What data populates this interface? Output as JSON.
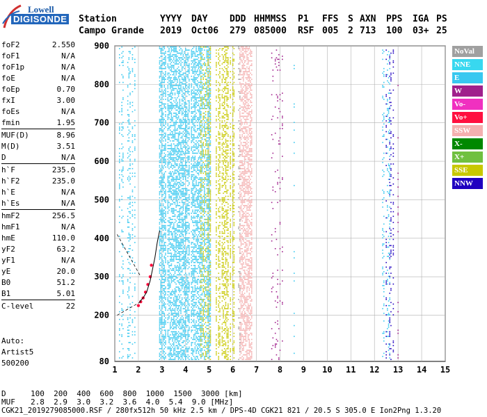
{
  "logo": {
    "top": "Lowell",
    "bottom": "DIGISONDE"
  },
  "header": {
    "labels": [
      "Station",
      "YYYY",
      "DAY",
      "DDD",
      "HHMMSS",
      "P1",
      "FFS",
      "S",
      "AXN",
      "PPS",
      "IGA",
      "PS"
    ],
    "values": [
      "Campo Grande",
      "2019",
      "Oct06",
      "279",
      "085000",
      "RSF",
      "005",
      "2",
      "713",
      "100",
      "03+",
      "25"
    ]
  },
  "params": [
    {
      "k": "foF2",
      "v": "2.550"
    },
    {
      "k": "foF1",
      "v": "N/A"
    },
    {
      "k": "foF1p",
      "v": "N/A"
    },
    {
      "k": "foE",
      "v": "N/A"
    },
    {
      "k": "foEp",
      "v": "0.70"
    },
    {
      "k": "fxI",
      "v": "3.00"
    },
    {
      "k": "foEs",
      "v": "N/A"
    },
    {
      "k": "fmin",
      "v": "1.95"
    },
    {
      "k": "MUF(D)",
      "v": "8.96"
    },
    {
      "k": "M(D)",
      "v": "3.51"
    },
    {
      "k": "D",
      "v": "N/A"
    },
    {
      "k": "h`F",
      "v": "235.0"
    },
    {
      "k": "h`F2",
      "v": "235.0"
    },
    {
      "k": "h`E",
      "v": "N/A"
    },
    {
      "k": "h`Es",
      "v": "N/A"
    },
    {
      "k": "hmF2",
      "v": "256.5"
    },
    {
      "k": "hmF1",
      "v": "N/A"
    },
    {
      "k": "hmE",
      "v": "110.0"
    },
    {
      "k": "yF2",
      "v": "63.2"
    },
    {
      "k": "yF1",
      "v": "N/A"
    },
    {
      "k": "yE",
      "v": "20.0"
    },
    {
      "k": "B0",
      "v": "51.2"
    },
    {
      "k": "B1",
      "v": "5.01"
    },
    {
      "k": "C-level",
      "v": "22"
    }
  ],
  "auto": {
    "line1": "Auto:",
    "line2": "Artist5",
    "line3": "500200"
  },
  "legend": [
    {
      "label": "NoVal",
      "color": "#a0a0a0"
    },
    {
      "label": "NNE",
      "color": "#38d8f0"
    },
    {
      "label": "E",
      "color": "#38c8f0"
    },
    {
      "label": "W",
      "color": "#a0208c"
    },
    {
      "label": "Vo-",
      "color": "#f030c0"
    },
    {
      "label": "Vo+",
      "color": "#ff1040"
    },
    {
      "label": "SSW",
      "color": "#f4b0b0"
    },
    {
      "label": "X-",
      "color": "#008800"
    },
    {
      "label": "X+",
      "color": "#70c040"
    },
    {
      "label": "SSE",
      "color": "#c8c800"
    },
    {
      "label": "NNW",
      "color": "#2000c0"
    }
  ],
  "footer": {
    "d_label": "D",
    "d_values": "100  200  400  600  800  1000  1500  3000 [km]",
    "muf_label": "MUF",
    "muf_values": "2.8  2.9  3.0  3.2  3.6  4.0  5.4  9.0 [MHz]",
    "file": "CGK21_2019279085000.RSF / 280fx512h 50 kHz 2.5 km / DPS-4D CGK21 821 / 20.5 S 305.0 E Ion2Png 1.3.20"
  },
  "chart_data": {
    "type": "scatter",
    "xlabel": "",
    "ylabel": "",
    "xlim": [
      1,
      15
    ],
    "ylim": [
      80,
      900
    ],
    "xticks": [
      1,
      2,
      3,
      4,
      5,
      6,
      7,
      8,
      9,
      10,
      11,
      12,
      13,
      14,
      15
    ],
    "yticks": [
      200,
      300,
      400,
      500,
      600,
      700,
      800,
      900
    ],
    "ytick_bottom": 80,
    "grid": true,
    "profile": {
      "x": [
        2.05,
        2.2,
        2.35,
        2.5,
        2.6,
        2.7,
        2.8,
        2.9
      ],
      "y": [
        235,
        245,
        260,
        290,
        320,
        350,
        390,
        420
      ]
    },
    "trace": {
      "x": [
        2.0,
        2.1,
        2.2,
        2.3,
        2.4,
        2.5,
        2.55
      ],
      "y": [
        225,
        235,
        245,
        260,
        280,
        300,
        330
      ]
    },
    "dashed": {
      "x1": [
        1.1,
        2.1
      ],
      "y1": [
        410,
        300
      ],
      "x2": [
        1.1,
        2.1
      ],
      "y2": [
        200,
        235
      ]
    }
  }
}
